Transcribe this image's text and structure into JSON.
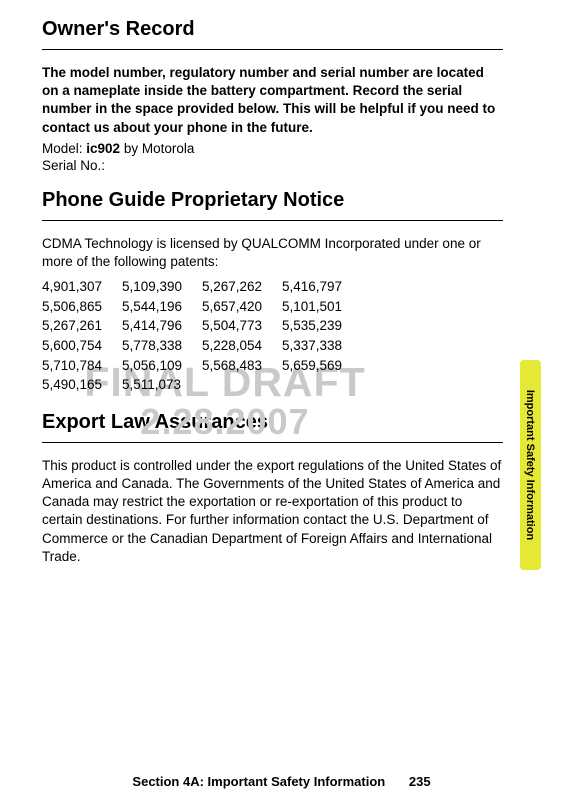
{
  "watermark": {
    "line1": "FINAL DRAFT",
    "line2": "2.28.2007"
  },
  "sideTab": {
    "label": "Important Safety Information"
  },
  "sections": {
    "owner": {
      "heading": "Owner's Record",
      "body": "The model number, regulatory number and serial number are located on a nameplate inside the battery compartment. Record the serial number in the space provided below. This will be helpful if you need to contact us about your phone in the future.",
      "modelLabel": "Model: ",
      "modelValue": "ic902",
      "modelSuffix": " by Motorola",
      "serialLabel": "Serial No.:"
    },
    "proprietary": {
      "heading": "Phone Guide Proprietary Notice",
      "body": "CDMA Technology is licensed by QUALCOMM Incorporated under one or more of the following patents:",
      "patents": [
        [
          "4,901,307",
          "5,109,390",
          "5,267,262",
          "5,416,797"
        ],
        [
          "5,506,865",
          "5,544,196",
          "5,657,420",
          "5,101,501"
        ],
        [
          "5,267,261",
          "5,414,796",
          "5,504,773",
          "5,535,239"
        ],
        [
          "5,600,754",
          "5,778,338",
          "5,228,054",
          "5,337,338"
        ],
        [
          "5,710,784",
          "5,056,109",
          "5,568,483",
          "5,659,569"
        ],
        [
          "5,490,165",
          "5,511,073"
        ]
      ]
    },
    "export": {
      "heading": "Export Law Assurances",
      "body": "This product is controlled under the export regulations of the United States of America and Canada. The Governments of the United States of America and Canada may restrict the exportation or re-exportation of this product to certain destinations. For further information contact the U.S. Department of Commerce or the Canadian Department of Foreign Affairs and International Trade."
    }
  },
  "footer": {
    "text": "Section 4A: Important Safety Information",
    "page": "235"
  }
}
